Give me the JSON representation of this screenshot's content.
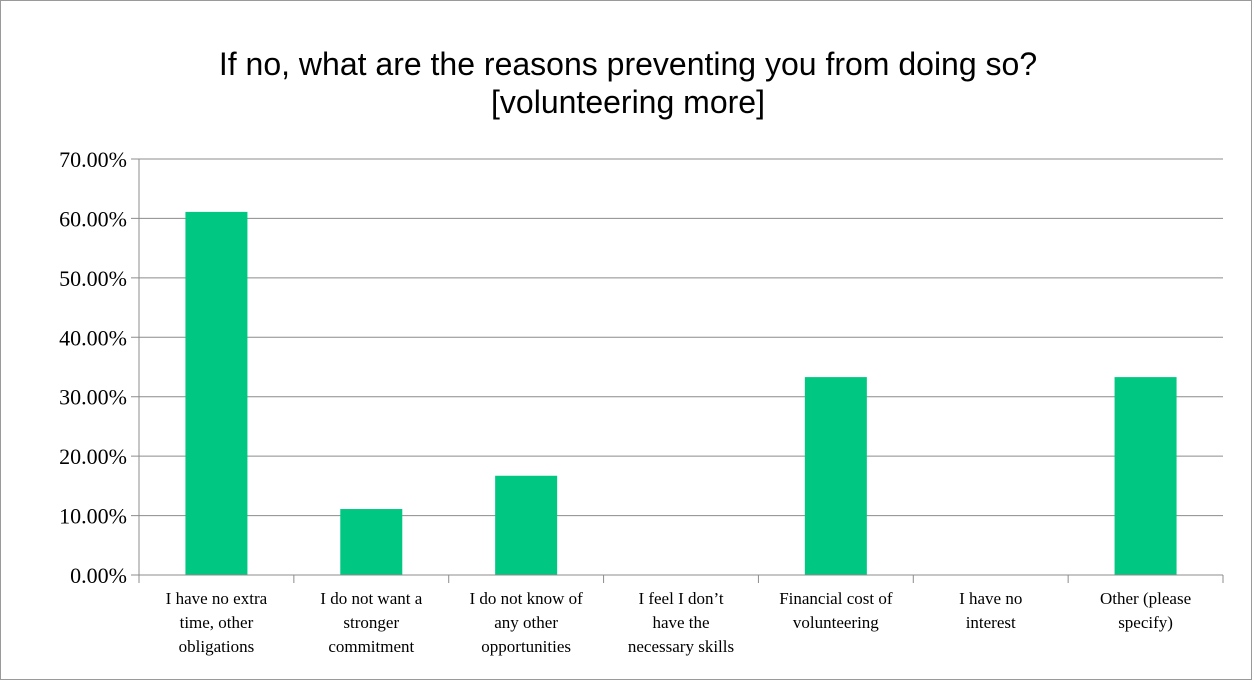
{
  "chart_data": {
    "type": "bar",
    "title": [
      "If no, what are the reasons preventing you from doing so?",
      "[volunteering more]"
    ],
    "categories": [
      [
        "I have no extra",
        "time, other",
        "obligations"
      ],
      [
        "I do not want a",
        "stronger",
        "commitment"
      ],
      [
        "I do not know of",
        "any other",
        "opportunities"
      ],
      [
        "I feel I don’t",
        "have the",
        "necessary skills"
      ],
      [
        "Financial cost of",
        "volunteering"
      ],
      [
        "I have no",
        "interest"
      ],
      [
        "Other (please",
        "specify)"
      ]
    ],
    "values": [
      61.1,
      11.1,
      16.7,
      0,
      33.3,
      0,
      33.3
    ],
    "ylim": [
      0,
      70
    ],
    "yticks": [
      "0.00%",
      "10.00%",
      "20.00%",
      "30.00%",
      "40.00%",
      "50.00%",
      "60.00%",
      "70.00%"
    ],
    "xlabel": "",
    "ylabel": "",
    "grid": true,
    "legend": "none",
    "colors": {
      "bar": "#00c882",
      "grid": "#8c8c8c",
      "axis": "#8c8c8c"
    }
  }
}
